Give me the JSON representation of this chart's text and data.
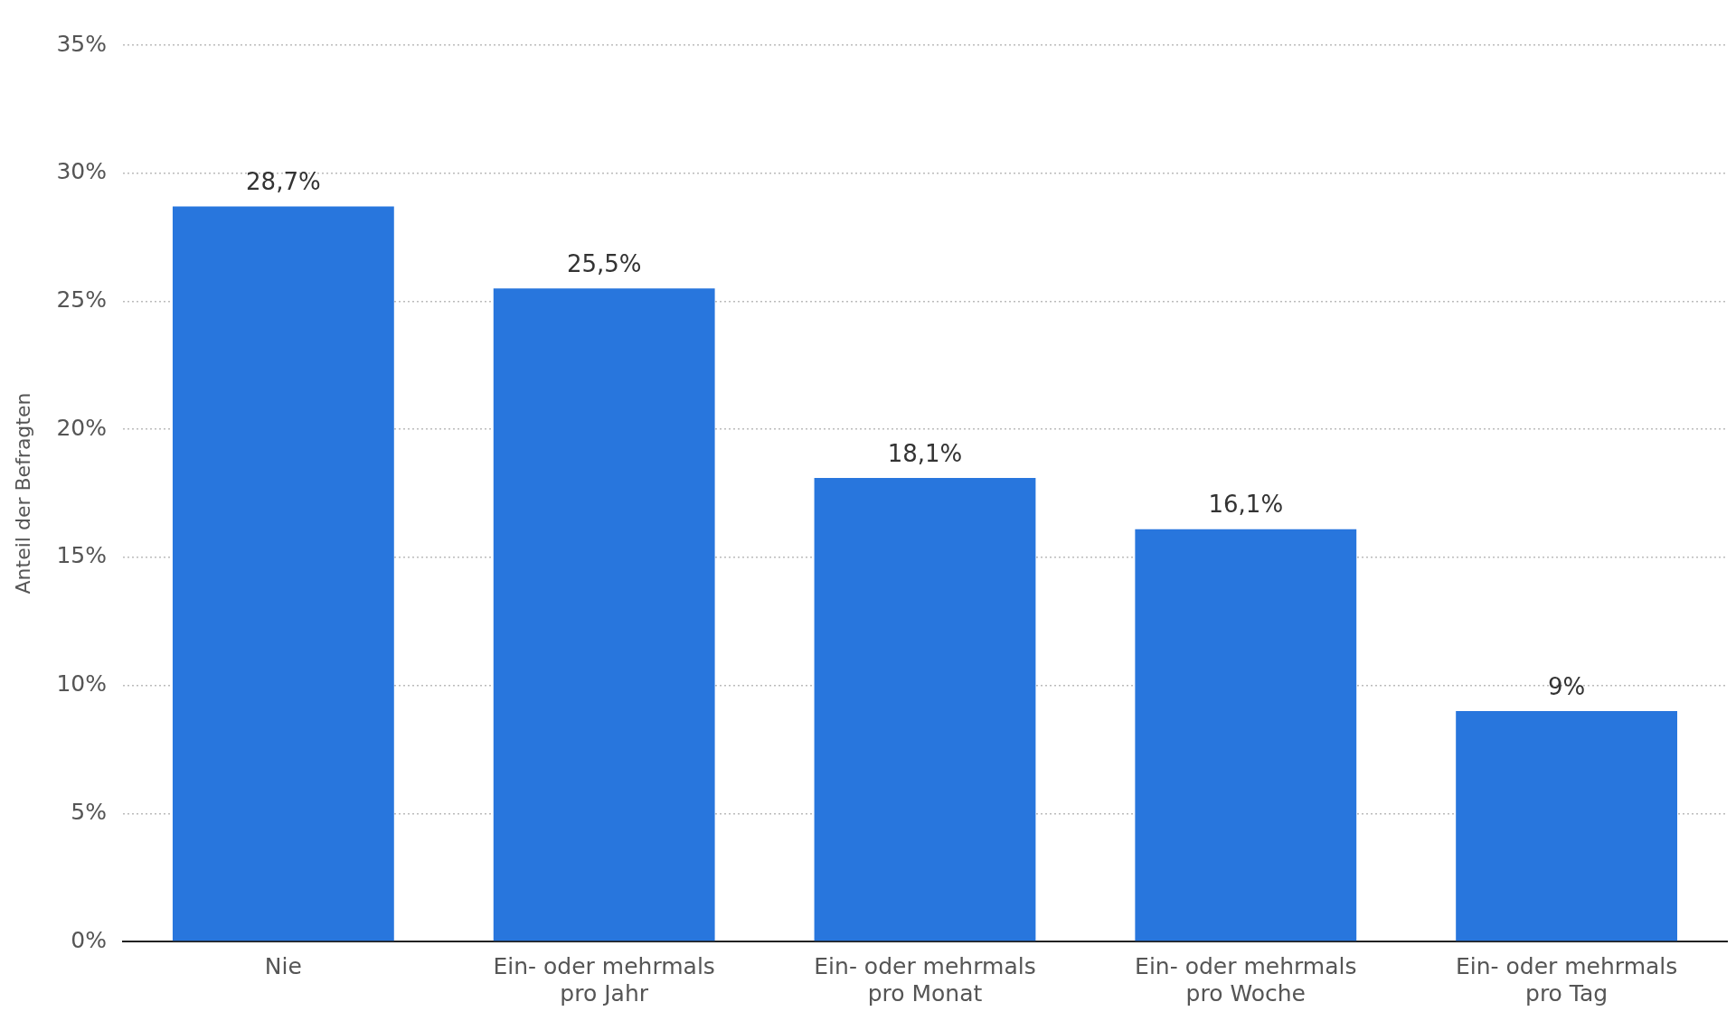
{
  "chart_data": {
    "type": "bar",
    "ylabel": "Anteil der Befragten",
    "categories": [
      "Nie",
      "Ein- oder mehrmals pro Jahr",
      "Ein- oder mehrmals pro Monat",
      "Ein- oder mehrmals pro Woche",
      "Ein- oder mehrmals pro Tag"
    ],
    "values": [
      28.7,
      25.5,
      18.1,
      16.1,
      9
    ],
    "value_labels": [
      "28,7%",
      "25,5%",
      "18,1%",
      "16,1%",
      "9%"
    ],
    "color": "#2876dd",
    "ylim": [
      0,
      35
    ],
    "yticks": [
      {
        "value": 0,
        "label": "0%"
      },
      {
        "value": 5,
        "label": "5%"
      },
      {
        "value": 10,
        "label": "10%"
      },
      {
        "value": 15,
        "label": "15%"
      },
      {
        "value": 20,
        "label": "20%"
      },
      {
        "value": 25,
        "label": "25%"
      },
      {
        "value": 30,
        "label": "30%"
      },
      {
        "value": 35,
        "label": "35%"
      }
    ],
    "grid": "y",
    "legend": false
  }
}
